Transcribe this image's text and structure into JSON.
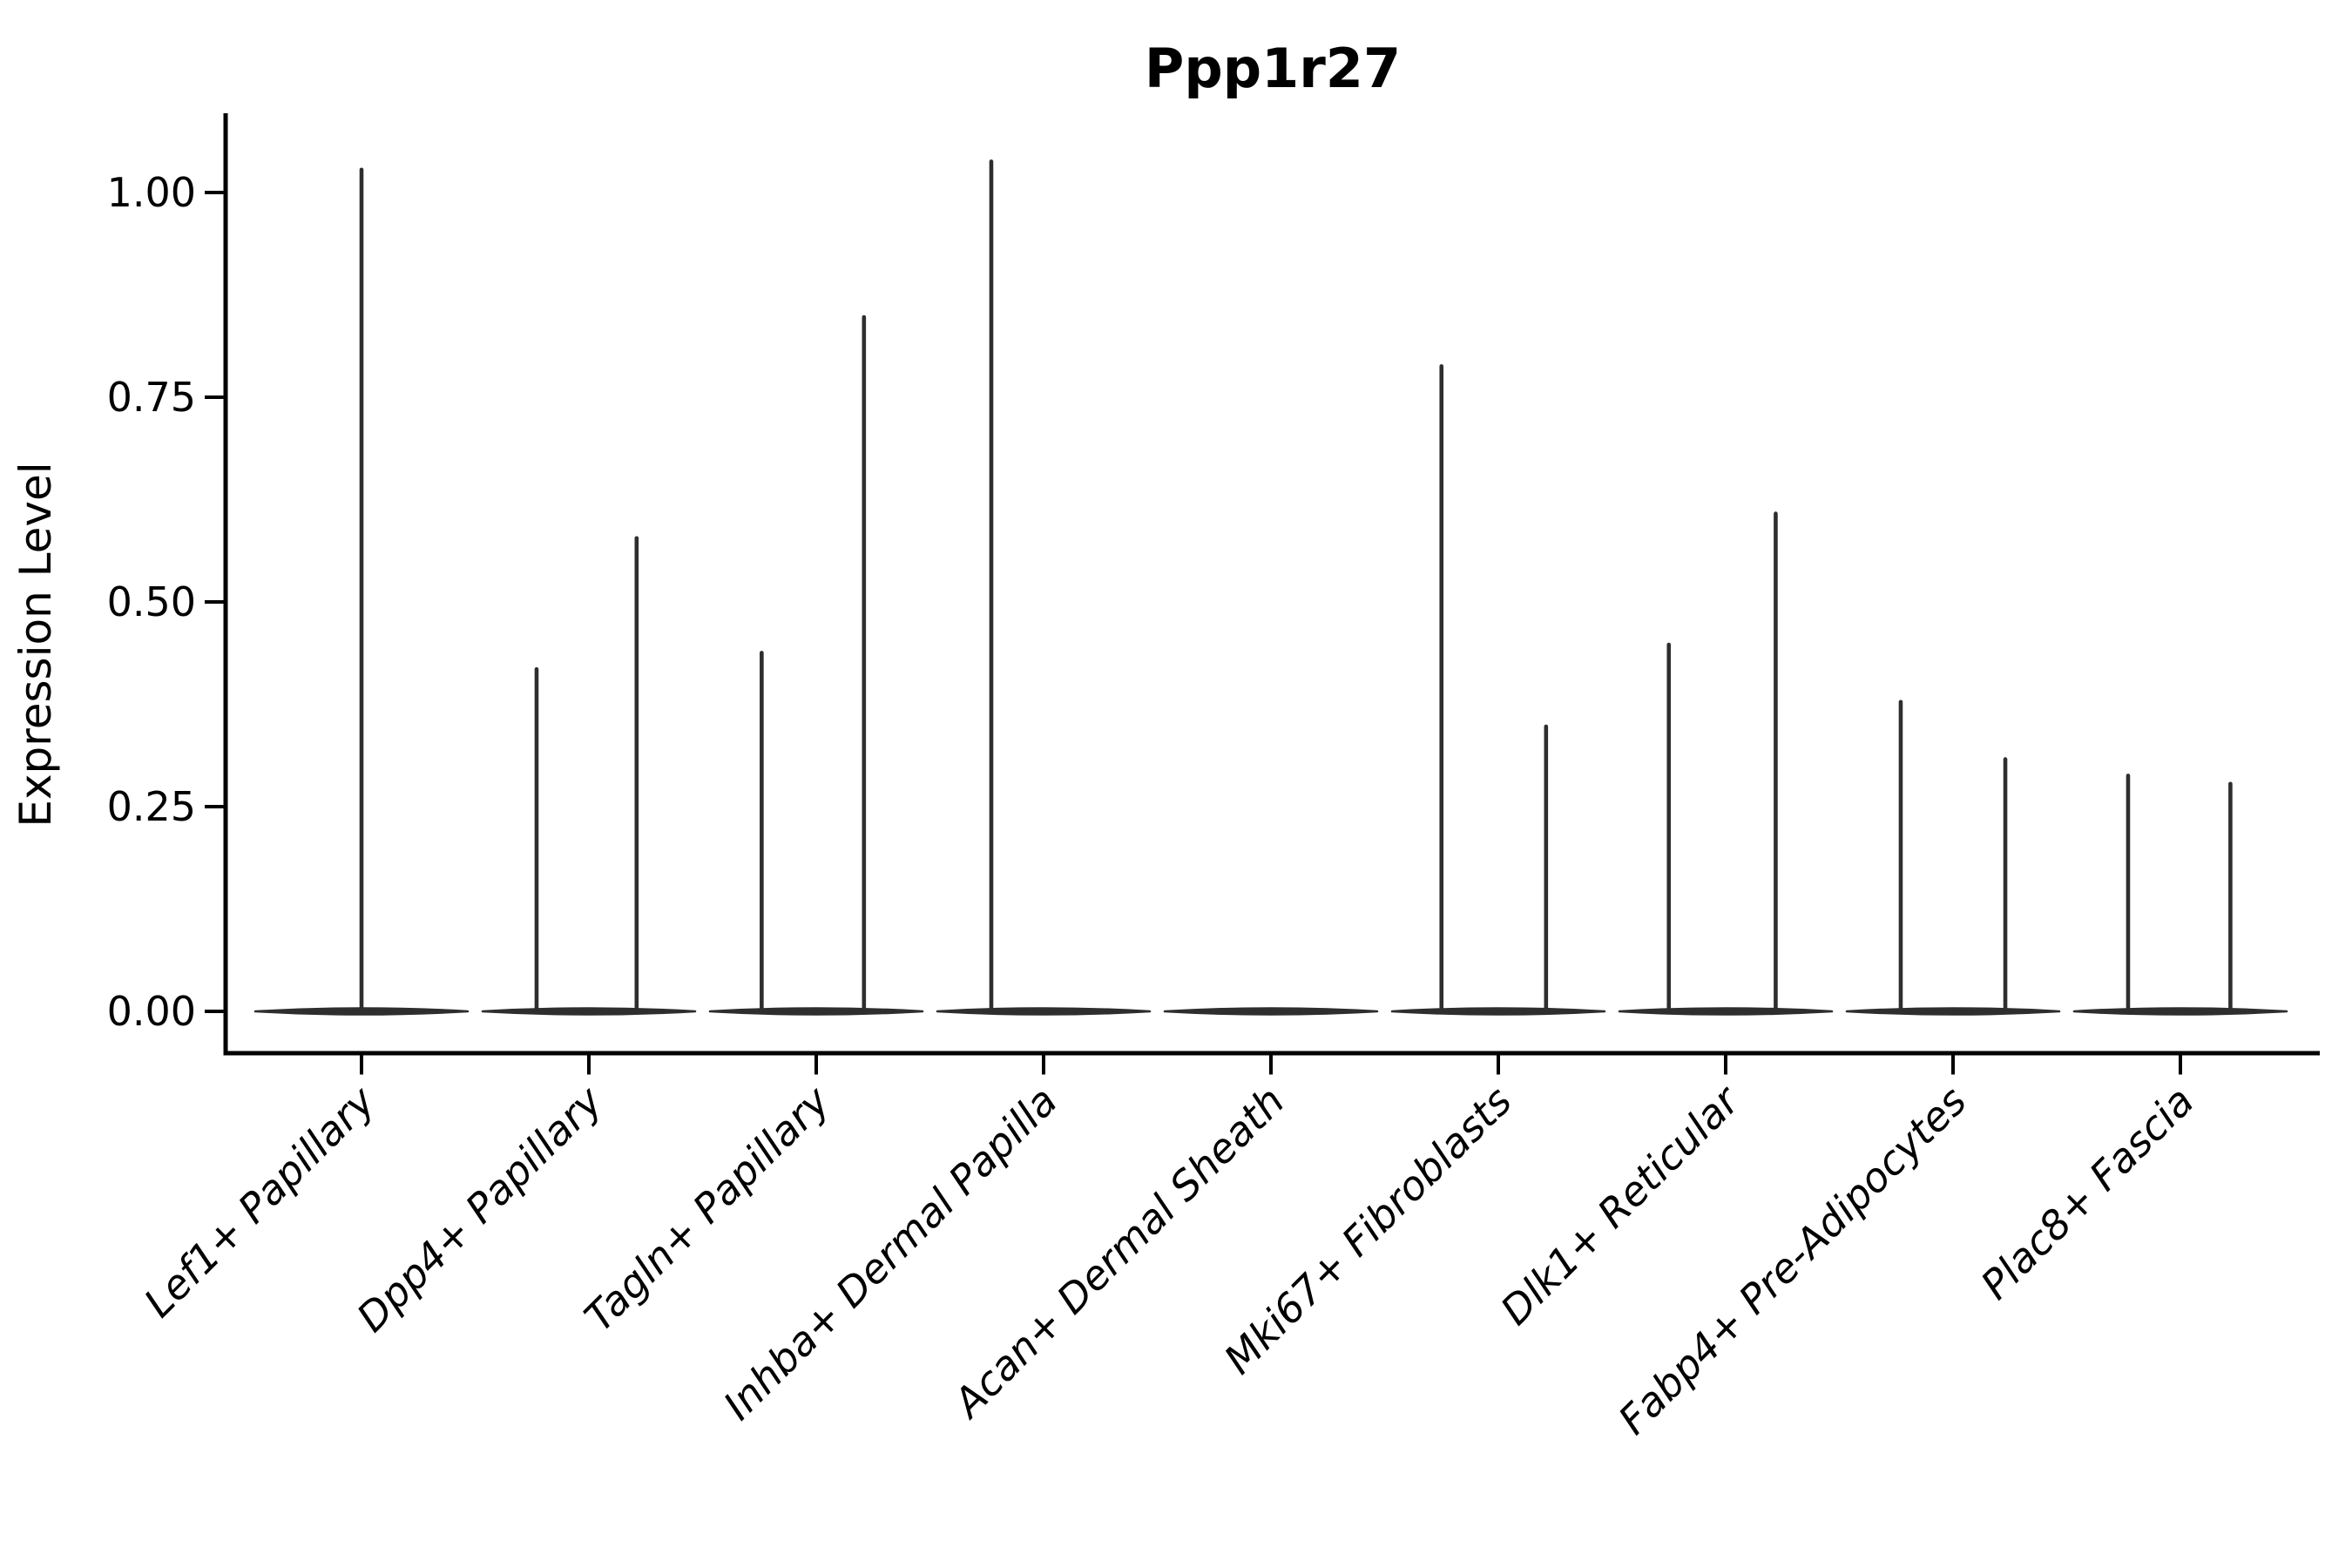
{
  "figure": {
    "background": "#ffffff"
  },
  "chart_data": {
    "type": "violin",
    "title": "Ppp1r27",
    "xlabel": "",
    "ylabel": "Expression Level",
    "ylim": [
      -0.05,
      1.09
    ],
    "yticks": [
      0.0,
      0.25,
      0.5,
      0.75,
      1.0
    ],
    "ytick_labels": [
      "0.00",
      "0.25",
      "0.50",
      "0.75",
      "1.00"
    ],
    "grid": false,
    "legend_position": "none",
    "colors": {
      "violin": "#2e2e2e",
      "axis": "#000000",
      "text": "#000000"
    },
    "categories": [
      "Lef1+ Papillary",
      "Dpp4+ Papillary",
      "Tagln+ Papillary",
      "Inhba+ Dermal Papilla",
      "Acan+ Dermal Sheath",
      "Mki67+ Fibroblasts",
      "Dlk1+ Reticular",
      "Fabp4+ Pre-Adipocytes",
      "Plac8+ Fascia"
    ],
    "violins": [
      {
        "category": "Lef1+ Papillary",
        "body_at_zero": true,
        "spikes": [
          {
            "pos": 0.0,
            "max": 1.03
          }
        ]
      },
      {
        "category": "Dpp4+ Papillary",
        "body_at_zero": true,
        "spikes": [
          {
            "pos": -0.23,
            "max": 0.42
          },
          {
            "pos": 0.21,
            "max": 0.58
          }
        ]
      },
      {
        "category": "Tagln+ Papillary",
        "body_at_zero": true,
        "spikes": [
          {
            "pos": -0.24,
            "max": 0.44
          },
          {
            "pos": 0.21,
            "max": 0.85
          }
        ]
      },
      {
        "category": "Inhba+ Dermal Papilla",
        "body_at_zero": true,
        "spikes": [
          {
            "pos": -0.23,
            "max": 1.04
          }
        ]
      },
      {
        "category": "Acan+ Dermal Sheath",
        "body_at_zero": true,
        "spikes": []
      },
      {
        "category": "Mki67+ Fibroblasts",
        "body_at_zero": true,
        "spikes": [
          {
            "pos": -0.25,
            "max": 0.79
          },
          {
            "pos": 0.21,
            "max": 0.35
          }
        ]
      },
      {
        "category": "Dlk1+ Reticular",
        "body_at_zero": true,
        "spikes": [
          {
            "pos": -0.25,
            "max": 0.45
          },
          {
            "pos": 0.22,
            "max": 0.61
          }
        ]
      },
      {
        "category": "Fabp4+ Pre-Adipocytes",
        "body_at_zero": true,
        "spikes": [
          {
            "pos": -0.23,
            "max": 0.38
          },
          {
            "pos": 0.23,
            "max": 0.31
          }
        ]
      },
      {
        "category": "Plac8+ Fascia",
        "body_at_zero": true,
        "spikes": [
          {
            "pos": -0.23,
            "max": 0.29
          },
          {
            "pos": 0.22,
            "max": 0.28
          }
        ]
      }
    ]
  }
}
